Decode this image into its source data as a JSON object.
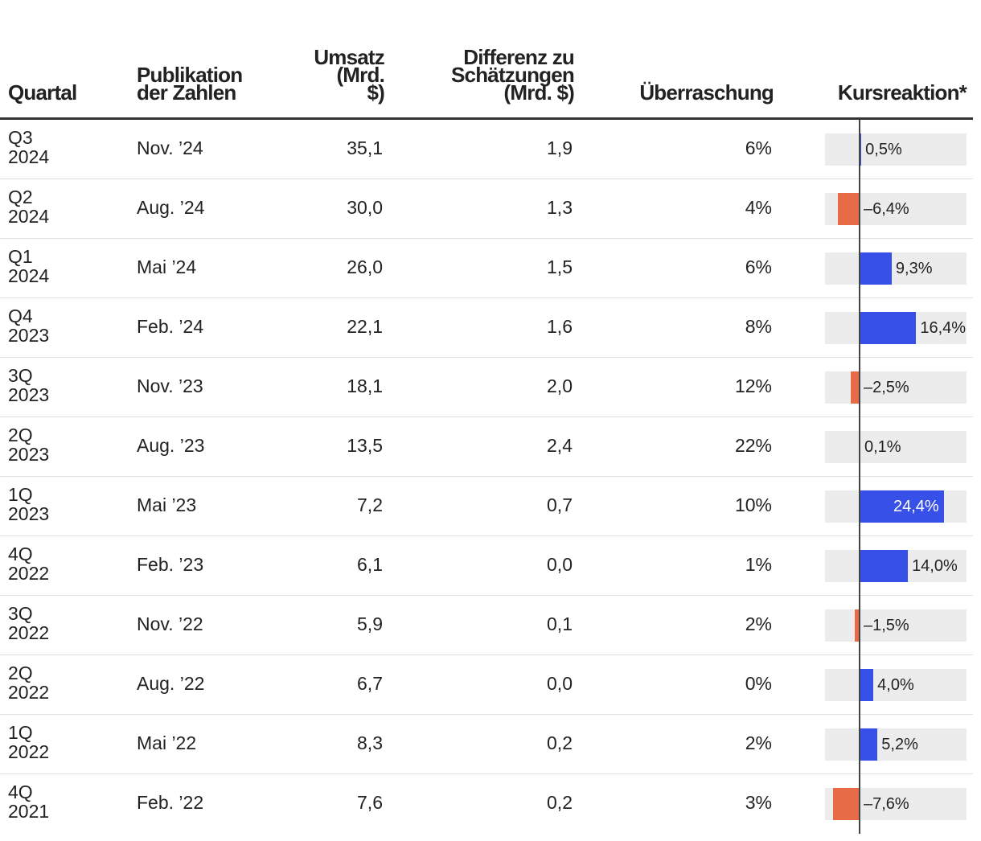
{
  "headers": {
    "quarter": "Quartal",
    "publication": "Publikation\nder Zahlen",
    "revenue": "Umsatz\n(Mrd.\n$)",
    "difference": "Differenz zu\nSchätzungen\n(Mrd. $)",
    "surprise": "Überraschung",
    "reaction": "Kursreaktion*"
  },
  "colors": {
    "positive": "#3650e8",
    "negative": "#e86b48",
    "track": "#ececec",
    "zero_line": "#444444"
  },
  "chart_data": {
    "type": "table",
    "bar_column": "Kursreaktion*",
    "bar_range": [
      -10,
      31
    ],
    "rows": [
      {
        "quarter": "Q3\n2024",
        "publication": "Nov. ’24",
        "revenue": "35,1",
        "difference": "1,9",
        "surprise": "6%",
        "reaction": 0.5,
        "reaction_label": "0,5%"
      },
      {
        "quarter": "Q2\n2024",
        "publication": "Aug. ’24",
        "revenue": "30,0",
        "difference": "1,3",
        "surprise": "4%",
        "reaction": -6.4,
        "reaction_label": "–6,4%"
      },
      {
        "quarter": "Q1\n2024",
        "publication": "Mai ’24",
        "revenue": "26,0",
        "difference": "1,5",
        "surprise": "6%",
        "reaction": 9.3,
        "reaction_label": "9,3%"
      },
      {
        "quarter": "Q4\n2023",
        "publication": "Feb. ’24",
        "revenue": "22,1",
        "difference": "1,6",
        "surprise": "8%",
        "reaction": 16.4,
        "reaction_label": "16,4%"
      },
      {
        "quarter": "3Q\n2023",
        "publication": "Nov. ’23",
        "revenue": "18,1",
        "difference": "2,0",
        "surprise": "12%",
        "reaction": -2.5,
        "reaction_label": "–2,5%"
      },
      {
        "quarter": "2Q\n2023",
        "publication": "Aug. ’23",
        "revenue": "13,5",
        "difference": "2,4",
        "surprise": "22%",
        "reaction": 0.1,
        "reaction_label": "0,1%"
      },
      {
        "quarter": "1Q\n2023",
        "publication": "Mai ’23",
        "revenue": "7,2",
        "difference": "0,7",
        "surprise": "10%",
        "reaction": 24.4,
        "reaction_label": "24,4%"
      },
      {
        "quarter": "4Q\n2022",
        "publication": "Feb. ’23",
        "revenue": "6,1",
        "difference": "0,0",
        "surprise": "1%",
        "reaction": 14.0,
        "reaction_label": "14,0%"
      },
      {
        "quarter": "3Q\n2022",
        "publication": "Nov. ’22",
        "revenue": "5,9",
        "difference": "0,1",
        "surprise": "2%",
        "reaction": -1.5,
        "reaction_label": "–1,5%"
      },
      {
        "quarter": "2Q\n2022",
        "publication": "Aug. ’22",
        "revenue": "6,7",
        "difference": "0,0",
        "surprise": "0%",
        "reaction": 4.0,
        "reaction_label": "4,0%"
      },
      {
        "quarter": "1Q\n2022",
        "publication": "Mai ’22",
        "revenue": "8,3",
        "difference": "0,2",
        "surprise": "2%",
        "reaction": 5.2,
        "reaction_label": "5,2%"
      },
      {
        "quarter": "4Q\n2021",
        "publication": "Feb. ’22",
        "revenue": "7,6",
        "difference": "0,2",
        "surprise": "3%",
        "reaction": -7.6,
        "reaction_label": "–7,6%"
      }
    ]
  }
}
